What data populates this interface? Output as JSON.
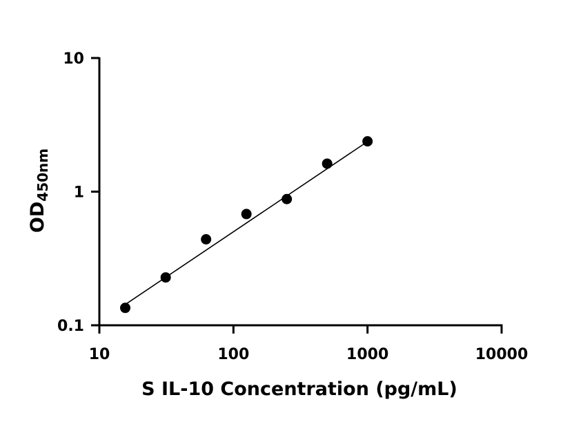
{
  "chart_data": {
    "type": "scatter",
    "title": "",
    "xlabel": "S IL-10 Concentration (pg/mL)",
    "ylabel_main": "OD",
    "ylabel_sub": "450nm",
    "xscale": "log",
    "yscale": "log",
    "xlim": [
      10,
      10000
    ],
    "ylim": [
      0.1,
      10
    ],
    "xticks": [
      10,
      100,
      1000,
      10000
    ],
    "xtick_labels": [
      "10",
      "100",
      "1000",
      "10000"
    ],
    "yticks": [
      0.1,
      1,
      10
    ],
    "ytick_labels": [
      "0.1",
      "1",
      "10"
    ],
    "grid": false,
    "legend": "none",
    "series": [
      {
        "x": [
          15.6,
          31.25,
          62.5,
          125,
          250,
          500,
          1000
        ],
        "y": [
          0.135,
          0.228,
          0.44,
          0.68,
          0.88,
          1.62,
          2.38
        ]
      }
    ],
    "fit_line": {
      "x": [
        15.6,
        1000
      ],
      "y": [
        0.143,
        2.37
      ]
    }
  }
}
